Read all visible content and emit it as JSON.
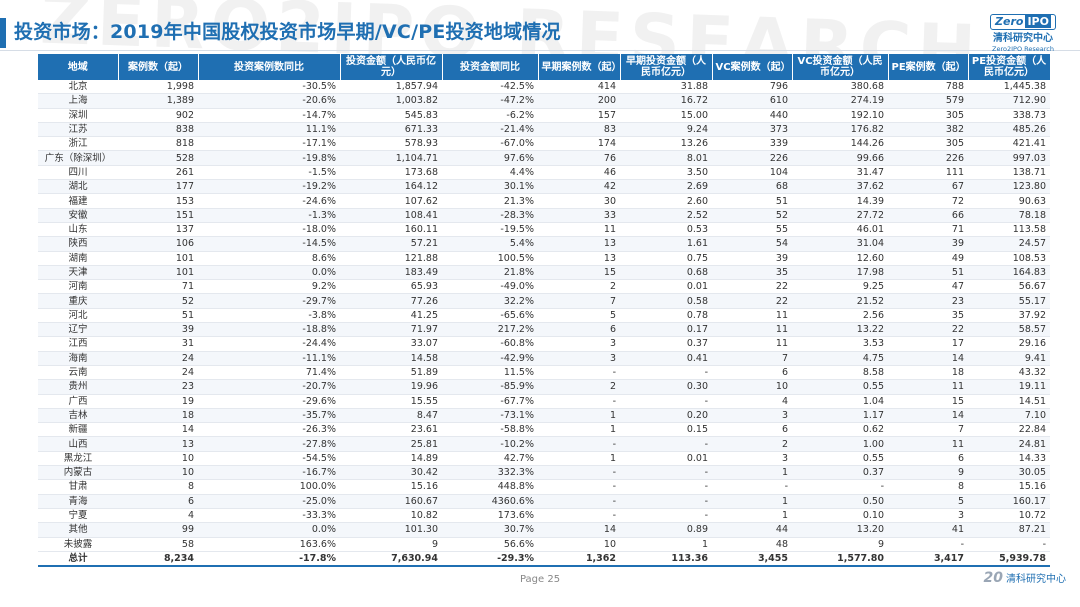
{
  "page": {
    "title": "投资市场：2019年中国股权投资市场早期/VC/PE投资地域情况",
    "watermark": "ZERO2IPO RESEARCH",
    "page_number": "Page  25"
  },
  "logo": {
    "badge_left": "Zero",
    "badge_right": "IPO",
    "cn": "清科研究中心",
    "en": "Zero2IPO Research"
  },
  "footer": {
    "mark": "20",
    "text": "清科研究中心"
  },
  "colors": {
    "accent": "#1f6fb2",
    "header_text": "#ffffff"
  },
  "table": {
    "headers": [
      "地域",
      "案例数（起）",
      "投资案例数同比",
      "投资金额（人民币亿元）",
      "投资金额同比",
      "早期案例数（起）",
      "早期投资金额（人民币亿元）",
      "VC案例数（起）",
      "VC投资金额（人民币亿元）",
      "PE案例数（起）",
      "PE投资金额（人民币亿元）"
    ],
    "rows": [
      [
        "北京",
        "1,998",
        "-30.5%",
        "1,857.94",
        "-42.5%",
        "414",
        "31.88",
        "796",
        "380.68",
        "788",
        "1,445.38"
      ],
      [
        "上海",
        "1,389",
        "-20.6%",
        "1,003.82",
        "-47.2%",
        "200",
        "16.72",
        "610",
        "274.19",
        "579",
        "712.90"
      ],
      [
        "深圳",
        "902",
        "-14.7%",
        "545.83",
        "-6.2%",
        "157",
        "15.00",
        "440",
        "192.10",
        "305",
        "338.73"
      ],
      [
        "江苏",
        "838",
        "11.1%",
        "671.33",
        "-21.4%",
        "83",
        "9.24",
        "373",
        "176.82",
        "382",
        "485.26"
      ],
      [
        "浙江",
        "818",
        "-17.1%",
        "578.93",
        "-67.0%",
        "174",
        "13.26",
        "339",
        "144.26",
        "305",
        "421.41"
      ],
      [
        "广东（除深圳）",
        "528",
        "-19.8%",
        "1,104.71",
        "97.6%",
        "76",
        "8.01",
        "226",
        "99.66",
        "226",
        "997.03"
      ],
      [
        "四川",
        "261",
        "-1.5%",
        "173.68",
        "4.4%",
        "46",
        "3.50",
        "104",
        "31.47",
        "111",
        "138.71"
      ],
      [
        "湖北",
        "177",
        "-19.2%",
        "164.12",
        "30.1%",
        "42",
        "2.69",
        "68",
        "37.62",
        "67",
        "123.80"
      ],
      [
        "福建",
        "153",
        "-24.6%",
        "107.62",
        "21.3%",
        "30",
        "2.60",
        "51",
        "14.39",
        "72",
        "90.63"
      ],
      [
        "安徽",
        "151",
        "-1.3%",
        "108.41",
        "-28.3%",
        "33",
        "2.52",
        "52",
        "27.72",
        "66",
        "78.18"
      ],
      [
        "山东",
        "137",
        "-18.0%",
        "160.11",
        "-19.5%",
        "11",
        "0.53",
        "55",
        "46.01",
        "71",
        "113.58"
      ],
      [
        "陕西",
        "106",
        "-14.5%",
        "57.21",
        "5.4%",
        "13",
        "1.61",
        "54",
        "31.04",
        "39",
        "24.57"
      ],
      [
        "湖南",
        "101",
        "8.6%",
        "121.88",
        "100.5%",
        "13",
        "0.75",
        "39",
        "12.60",
        "49",
        "108.53"
      ],
      [
        "天津",
        "101",
        "0.0%",
        "183.49",
        "21.8%",
        "15",
        "0.68",
        "35",
        "17.98",
        "51",
        "164.83"
      ],
      [
        "河南",
        "71",
        "9.2%",
        "65.93",
        "-49.0%",
        "2",
        "0.01",
        "22",
        "9.25",
        "47",
        "56.67"
      ],
      [
        "重庆",
        "52",
        "-29.7%",
        "77.26",
        "32.2%",
        "7",
        "0.58",
        "22",
        "21.52",
        "23",
        "55.17"
      ],
      [
        "河北",
        "51",
        "-3.8%",
        "41.25",
        "-65.6%",
        "5",
        "0.78",
        "11",
        "2.56",
        "35",
        "37.92"
      ],
      [
        "辽宁",
        "39",
        "-18.8%",
        "71.97",
        "217.2%",
        "6",
        "0.17",
        "11",
        "13.22",
        "22",
        "58.57"
      ],
      [
        "江西",
        "31",
        "-24.4%",
        "33.07",
        "-60.8%",
        "3",
        "0.37",
        "11",
        "3.53",
        "17",
        "29.16"
      ],
      [
        "海南",
        "24",
        "-11.1%",
        "14.58",
        "-42.9%",
        "3",
        "0.41",
        "7",
        "4.75",
        "14",
        "9.41"
      ],
      [
        "云南",
        "24",
        "71.4%",
        "51.89",
        "11.5%",
        "-",
        "-",
        "6",
        "8.58",
        "18",
        "43.32"
      ],
      [
        "贵州",
        "23",
        "-20.7%",
        "19.96",
        "-85.9%",
        "2",
        "0.30",
        "10",
        "0.55",
        "11",
        "19.11"
      ],
      [
        "广西",
        "19",
        "-29.6%",
        "15.55",
        "-67.7%",
        "-",
        "-",
        "4",
        "1.04",
        "15",
        "14.51"
      ],
      [
        "吉林",
        "18",
        "-35.7%",
        "8.47",
        "-73.1%",
        "1",
        "0.20",
        "3",
        "1.17",
        "14",
        "7.10"
      ],
      [
        "新疆",
        "14",
        "-26.3%",
        "23.61",
        "-58.8%",
        "1",
        "0.15",
        "6",
        "0.62",
        "7",
        "22.84"
      ],
      [
        "山西",
        "13",
        "-27.8%",
        "25.81",
        "-10.2%",
        "-",
        "-",
        "2",
        "1.00",
        "11",
        "24.81"
      ],
      [
        "黑龙江",
        "10",
        "-54.5%",
        "14.89",
        "42.7%",
        "1",
        "0.01",
        "3",
        "0.55",
        "6",
        "14.33"
      ],
      [
        "内蒙古",
        "10",
        "-16.7%",
        "30.42",
        "332.3%",
        "-",
        "-",
        "1",
        "0.37",
        "9",
        "30.05"
      ],
      [
        "甘肃",
        "8",
        "100.0%",
        "15.16",
        "448.8%",
        "-",
        "-",
        "-",
        "-",
        "8",
        "15.16"
      ],
      [
        "青海",
        "6",
        "-25.0%",
        "160.67",
        "4360.6%",
        "-",
        "-",
        "1",
        "0.50",
        "5",
        "160.17"
      ],
      [
        "宁夏",
        "4",
        "-33.3%",
        "10.82",
        "173.6%",
        "-",
        "-",
        "1",
        "0.10",
        "3",
        "10.72"
      ],
      [
        "其他",
        "99",
        "0.0%",
        "101.30",
        "30.7%",
        "14",
        "0.89",
        "44",
        "13.20",
        "41",
        "87.21"
      ],
      [
        "未披露",
        "58",
        "163.6%",
        "9",
        "56.6%",
        "10",
        "1",
        "48",
        "9",
        "-",
        "-"
      ]
    ],
    "total": [
      "总计",
      "8,234",
      "-17.8%",
      "7,630.94",
      "-29.3%",
      "1,362",
      "113.36",
      "3,455",
      "1,577.80",
      "3,417",
      "5,939.78"
    ]
  }
}
